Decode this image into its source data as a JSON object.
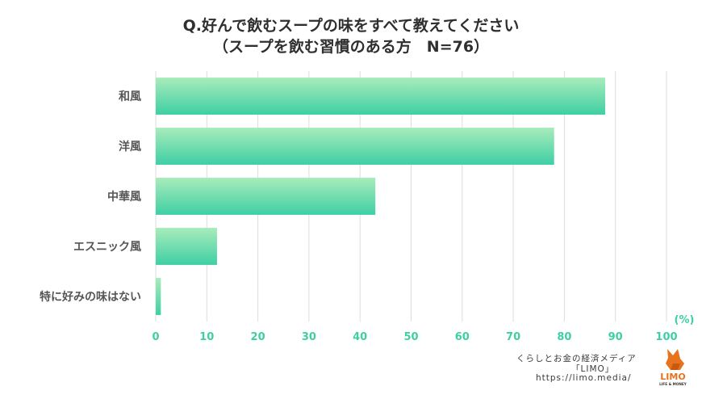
{
  "title": "Q.好んで飲むスープの味をすべて教えてください",
  "subtitle": "（スープを飲む習慣のある方　N=76）",
  "unit_label": "(%)",
  "chart_data": {
    "type": "bar",
    "orientation": "horizontal",
    "title": "Q.好んで飲むスープの味をすべて教えてください",
    "subtitle": "（スープを飲む習慣のある方　N=76）",
    "categories": [
      "和風",
      "洋風",
      "中華風",
      "エスニック風",
      "特に好みの味はない"
    ],
    "values": [
      88,
      78,
      43,
      12,
      1
    ],
    "xlim": [
      0,
      100
    ],
    "xticks": [
      0,
      10,
      20,
      30,
      40,
      50,
      60,
      70,
      80,
      90,
      100
    ],
    "xunit": "(%)",
    "grid": true,
    "legend": "none",
    "colors": {
      "bar_top": "#a8ecbb",
      "bar_bottom": "#3ecfa4",
      "tick_text": "#3ecfa4",
      "category_text": "#555555",
      "grid": "#dddddd"
    }
  },
  "credit": {
    "line1": "くらしとお金の経済メディア",
    "line2": "「LIMO」",
    "line3": "https://limo.media/"
  },
  "logo": {
    "icon": "limo-fox-logo-icon",
    "text": "LIMO",
    "tagline": "LIFE & MONEY",
    "color": "#e8731f"
  }
}
